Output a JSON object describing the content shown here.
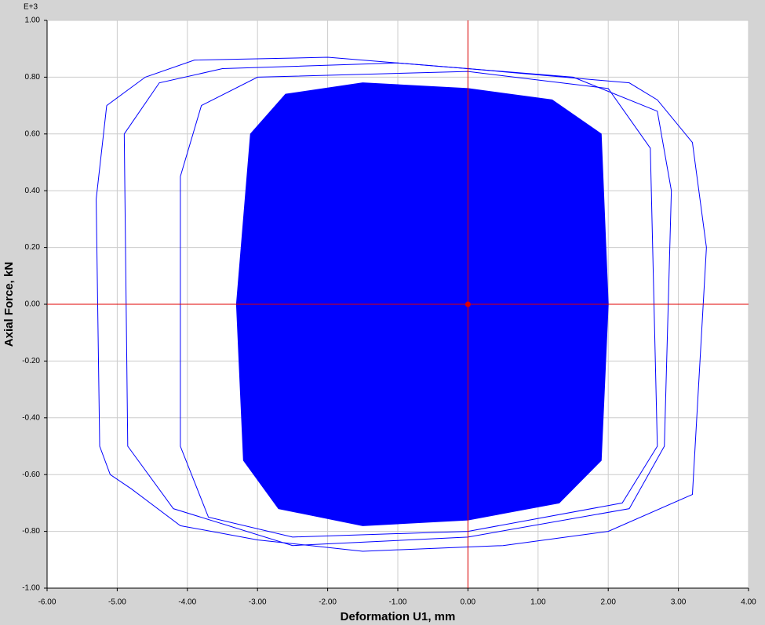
{
  "chart_data": {
    "type": "line",
    "y_multiplier": "E+3",
    "x_label": "Deformation U1, mm",
    "y_label": "Axial Force, kN",
    "xlim": [
      -6,
      4
    ],
    "ylim": [
      -1,
      1
    ],
    "xticks": [
      {
        "value": -6,
        "label": "-6.00"
      },
      {
        "value": -5,
        "label": "-5.00"
      },
      {
        "value": -4,
        "label": "-4.00"
      },
      {
        "value": -3,
        "label": "-3.00"
      },
      {
        "value": -2,
        "label": "-2.00"
      },
      {
        "value": -1,
        "label": "-1.00"
      },
      {
        "value": 0,
        "label": "0.00"
      },
      {
        "value": 1,
        "label": "1.00"
      },
      {
        "value": 2,
        "label": "2.00"
      },
      {
        "value": 3,
        "label": "3.00"
      },
      {
        "value": 4,
        "label": "4.00"
      }
    ],
    "yticks": [
      {
        "value": -1,
        "label": "-1.00"
      },
      {
        "value": -0.8,
        "label": "-0.80"
      },
      {
        "value": -0.6,
        "label": "-0.60"
      },
      {
        "value": -0.4,
        "label": "-0.40"
      },
      {
        "value": -0.2,
        "label": "-0.20"
      },
      {
        "value": 0,
        "label": "0.00"
      },
      {
        "value": 0.2,
        "label": "0.20"
      },
      {
        "value": 0.4,
        "label": "0.40"
      },
      {
        "value": 0.6,
        "label": "0.60"
      },
      {
        "value": 0.8,
        "label": "0.80"
      },
      {
        "value": 1,
        "label": "1.00"
      }
    ],
    "grid": true,
    "series": [
      {
        "color": "#0000ff",
        "fill": true,
        "x": [
          -3.1,
          -2.6,
          -1.5,
          0,
          1.2,
          1.9,
          2.0,
          1.9,
          1.3,
          0,
          -1.5,
          -2.7,
          -3.2,
          -3.3,
          -3.1
        ],
        "values": [
          0.6,
          0.74,
          0.78,
          0.76,
          0.72,
          0.6,
          0,
          -0.55,
          -0.7,
          -0.76,
          -0.78,
          -0.72,
          -0.55,
          0,
          0.6
        ]
      },
      {
        "color": "#0000ff",
        "fill": false,
        "x": [
          -4.1,
          -3.8,
          -3,
          0,
          2.0,
          2.6,
          2.7,
          2.2,
          0,
          -2.5,
          -3.7,
          -4.1,
          -4.1
        ],
        "values": [
          0.45,
          0.7,
          0.8,
          0.82,
          0.76,
          0.55,
          -0.5,
          -0.7,
          -0.8,
          -0.82,
          -0.75,
          -0.5,
          0.45
        ]
      },
      {
        "color": "#0000ff",
        "fill": false,
        "x": [
          -4.9,
          -4.4,
          -3.5,
          -1,
          1.5,
          2.7,
          2.9,
          2.8,
          2.3,
          0,
          -2.5,
          -4.2,
          -4.85,
          -4.9
        ],
        "values": [
          0.6,
          0.78,
          0.83,
          0.85,
          0.8,
          0.68,
          0.4,
          -0.5,
          -0.72,
          -0.82,
          -0.85,
          -0.72,
          -0.5,
          0.6
        ]
      },
      {
        "color": "#0000ff",
        "fill": false,
        "x": [
          -5.15,
          -4.6,
          -3.9,
          -2,
          0,
          2.3,
          2.7,
          3.2,
          3.4,
          3.2,
          2.0,
          0.5,
          -1.5,
          -3,
          -4.1,
          -4.8,
          -5.1,
          -5.25,
          -5.3,
          -5.15
        ],
        "values": [
          0.7,
          0.8,
          0.86,
          0.87,
          0.83,
          0.78,
          0.72,
          0.57,
          0.2,
          -0.67,
          -0.8,
          -0.85,
          -0.87,
          -0.83,
          -0.78,
          -0.65,
          -0.6,
          -0.5,
          0.37,
          0.7
        ]
      }
    ],
    "cursor": {
      "x": 0,
      "y": 0,
      "color": "#e00000"
    }
  }
}
